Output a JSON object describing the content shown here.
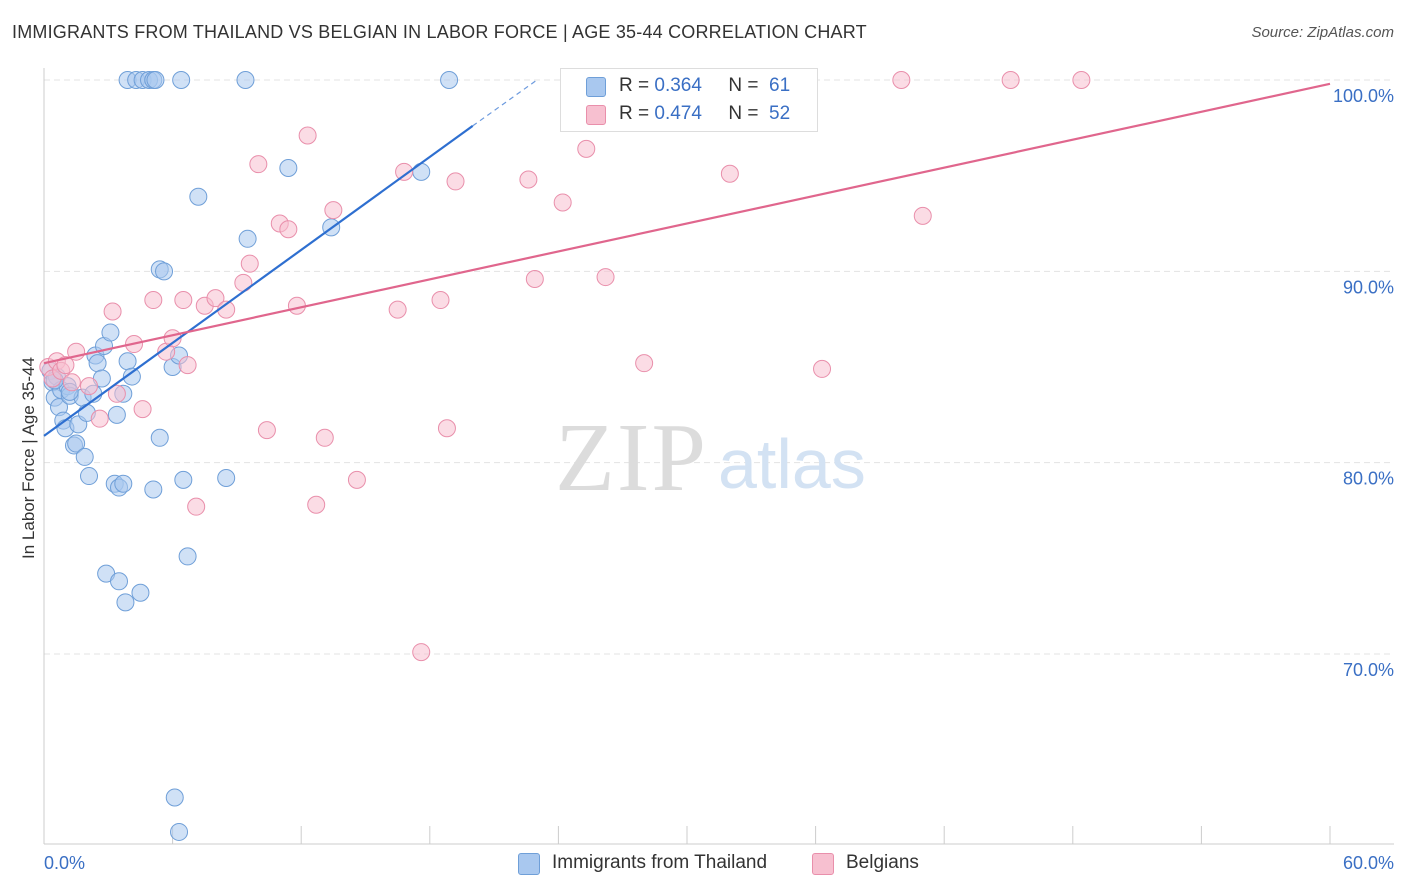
{
  "title": "IMMIGRANTS FROM THAILAND VS BELGIAN IN LABOR FORCE | AGE 35-44 CORRELATION CHART",
  "source": "Source: ZipAtlas.com",
  "watermark": {
    "zip": "ZIP",
    "atlas": "atlas"
  },
  "legend": {
    "rows": [
      {
        "r_label": "R =",
        "r_value": "0.364",
        "n_label": "N =",
        "n_value": "61"
      },
      {
        "r_label": "R =",
        "r_value": "0.474",
        "n_label": "N =",
        "n_value": "52"
      }
    ]
  },
  "bottom_legend": [
    "Immigrants from Thailand",
    "Belgians"
  ],
  "colors": {
    "thailand_fill": "#a9c8ef",
    "thailand_stroke": "#6f9fd8",
    "thailand_line": "#2e6fd0",
    "belgian_fill": "#f7c0d0",
    "belgian_stroke": "#e98fab",
    "belgian_line": "#e0668d",
    "tick_text": "#3a6fc4",
    "grid": "#e3e3e3"
  },
  "chart_data": {
    "type": "scatter",
    "title": "IMMIGRANTS FROM THAILAND VS BELGIAN IN LABOR FORCE | AGE 35-44 CORRELATION CHART",
    "xlabel": "",
    "ylabel": "In Labor Force | Age 35-44",
    "xlim": [
      0,
      60
    ],
    "ylim": [
      60,
      101.5
    ],
    "x_tick_labels": [
      "0.0%",
      "60.0%"
    ],
    "y_ticks": [
      70,
      80,
      90,
      100
    ],
    "y_tick_labels": [
      "70.0%",
      "80.0%",
      "90.0%",
      "100.0%"
    ],
    "series": [
      {
        "name": "Immigrants from Thailand",
        "R": 0.364,
        "N": 61,
        "trend": {
          "x0": 0,
          "y0": 81.4,
          "x1": 20.0,
          "y1": 97.6,
          "dashed_to_x": 23.0,
          "dashed_to_y": 100.0
        },
        "points": [
          [
            0.3,
            84.8
          ],
          [
            0.4,
            84.2
          ],
          [
            0.5,
            83.4
          ],
          [
            0.6,
            84.5
          ],
          [
            0.7,
            82.9
          ],
          [
            0.8,
            83.8
          ],
          [
            0.9,
            82.2
          ],
          [
            1.0,
            81.8
          ],
          [
            1.1,
            84.0
          ],
          [
            1.2,
            83.5
          ],
          [
            1.4,
            80.9
          ],
          [
            1.5,
            81.0
          ],
          [
            1.6,
            82.0
          ],
          [
            1.8,
            83.4
          ],
          [
            1.9,
            80.3
          ],
          [
            2.1,
            79.3
          ],
          [
            2.3,
            83.6
          ],
          [
            2.4,
            85.6
          ],
          [
            2.5,
            85.2
          ],
          [
            2.7,
            84.4
          ],
          [
            2.8,
            86.1
          ],
          [
            3.1,
            86.8
          ],
          [
            3.3,
            78.9
          ],
          [
            3.4,
            82.5
          ],
          [
            3.5,
            78.7
          ],
          [
            3.7,
            83.6
          ],
          [
            3.7,
            78.9
          ],
          [
            3.9,
            85.3
          ],
          [
            4.1,
            84.5
          ],
          [
            4.5,
            73.2
          ],
          [
            3.8,
            72.7
          ],
          [
            2.9,
            74.2
          ],
          [
            3.5,
            73.8
          ],
          [
            5.1,
            78.6
          ],
          [
            5.4,
            81.3
          ],
          [
            5.4,
            90.1
          ],
          [
            5.6,
            90.0
          ],
          [
            6.0,
            85.0
          ],
          [
            6.3,
            85.6
          ],
          [
            6.5,
            79.1
          ],
          [
            6.7,
            75.1
          ],
          [
            7.2,
            93.9
          ],
          [
            8.5,
            79.2
          ],
          [
            9.5,
            91.7
          ],
          [
            11.4,
            95.4
          ],
          [
            13.4,
            92.3
          ],
          [
            17.6,
            95.2
          ],
          [
            18.9,
            100.0
          ],
          [
            3.9,
            100.0
          ],
          [
            4.3,
            100.0
          ],
          [
            4.6,
            100.0
          ],
          [
            4.9,
            100.0
          ],
          [
            5.1,
            100.0
          ],
          [
            5.2,
            100.0
          ],
          [
            6.4,
            100.0
          ],
          [
            9.4,
            100.0
          ],
          [
            6.1,
            62.5
          ],
          [
            6.3,
            60.7
          ],
          [
            0.5,
            84.3
          ],
          [
            1.2,
            83.7
          ],
          [
            2.0,
            82.6
          ]
        ]
      },
      {
        "name": "Belgians",
        "R": 0.474,
        "N": 52,
        "trend": {
          "x0": 0,
          "y0": 85.2,
          "x1": 60,
          "y1": 99.8
        },
        "points": [
          [
            0.2,
            85.0
          ],
          [
            0.4,
            84.4
          ],
          [
            0.6,
            85.3
          ],
          [
            0.8,
            84.8
          ],
          [
            1.0,
            85.1
          ],
          [
            1.3,
            84.2
          ],
          [
            1.5,
            85.8
          ],
          [
            2.1,
            84.0
          ],
          [
            2.6,
            82.3
          ],
          [
            3.2,
            87.9
          ],
          [
            3.4,
            83.6
          ],
          [
            4.2,
            86.2
          ],
          [
            4.6,
            82.8
          ],
          [
            5.1,
            88.5
          ],
          [
            5.7,
            85.8
          ],
          [
            6.0,
            86.5
          ],
          [
            6.5,
            88.5
          ],
          [
            6.7,
            85.1
          ],
          [
            7.1,
            77.7
          ],
          [
            7.5,
            88.2
          ],
          [
            8.0,
            88.6
          ],
          [
            8.5,
            88.0
          ],
          [
            9.3,
            89.4
          ],
          [
            9.6,
            90.4
          ],
          [
            10.0,
            95.6
          ],
          [
            10.4,
            81.7
          ],
          [
            11.0,
            92.5
          ],
          [
            11.4,
            92.2
          ],
          [
            11.8,
            88.2
          ],
          [
            12.3,
            97.1
          ],
          [
            12.7,
            77.8
          ],
          [
            13.1,
            81.3
          ],
          [
            13.5,
            93.2
          ],
          [
            14.6,
            79.1
          ],
          [
            16.5,
            88.0
          ],
          [
            16.8,
            95.2
          ],
          [
            17.6,
            70.1
          ],
          [
            18.5,
            88.5
          ],
          [
            18.8,
            81.8
          ],
          [
            19.2,
            94.7
          ],
          [
            22.6,
            94.8
          ],
          [
            22.9,
            89.6
          ],
          [
            24.2,
            93.6
          ],
          [
            25.3,
            96.4
          ],
          [
            26.2,
            89.7
          ],
          [
            28.0,
            85.2
          ],
          [
            32.0,
            95.1
          ],
          [
            36.3,
            84.9
          ],
          [
            41.0,
            92.9
          ],
          [
            40.0,
            100.0
          ],
          [
            45.1,
            100.0
          ],
          [
            48.4,
            100.0
          ]
        ]
      }
    ]
  }
}
